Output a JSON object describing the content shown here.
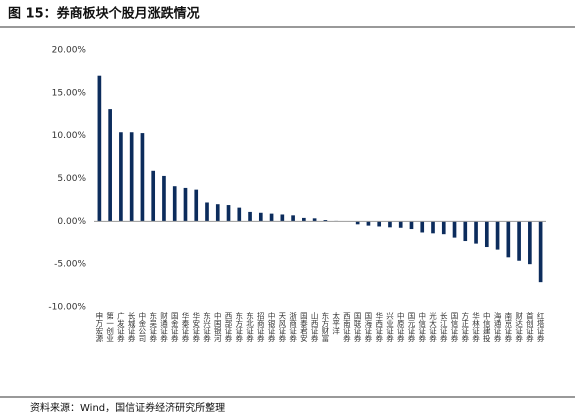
{
  "chart_data": {
    "type": "bar",
    "title": "图 15：券商板块个股月涨跌情况",
    "source": "资料来源：Wind，国信证券经济研究所整理",
    "categories": [
      "申万宏源",
      "第一创业",
      "广发证券",
      "长城证券",
      "中金公司",
      "东吴证券",
      "财通证券",
      "国金证券",
      "华泰证券",
      "华安证券",
      "东兴证券",
      "中国银河",
      "西部证券",
      "东方证券",
      "东北证券",
      "招商证券",
      "中银证券",
      "天风证券",
      "浙商证券",
      "国泰君安",
      "山西证券",
      "东方财富",
      "太平洋",
      "西南证券",
      "国联证券",
      "国海证券",
      "华西证券",
      "兴业证券",
      "中原证券",
      "国元证券",
      "中信证券",
      "光大证券",
      "长江证券",
      "国信证券",
      "方正证券",
      "华林证券",
      "中信建投",
      "海通证券",
      "南京证券",
      "财达证券",
      "首创证券",
      "红塔证券"
    ],
    "values": [
      17.0,
      13.1,
      10.4,
      10.4,
      10.3,
      5.9,
      5.3,
      4.1,
      3.9,
      3.7,
      2.2,
      2.0,
      1.9,
      1.6,
      1.1,
      1.0,
      0.9,
      0.8,
      0.7,
      0.4,
      0.35,
      0.15,
      0.05,
      0.0,
      -0.35,
      -0.5,
      -0.6,
      -0.7,
      -0.75,
      -0.9,
      -1.3,
      -1.4,
      -1.5,
      -1.9,
      -2.3,
      -2.6,
      -3.0,
      -3.3,
      -4.2,
      -4.6,
      -5.0,
      -7.1
    ],
    "color": "#0c2c5c",
    "ylim": [
      -10,
      20
    ],
    "yticks": [
      {
        "value": -10,
        "label": "-10.00%"
      },
      {
        "value": -5,
        "label": "-5.00%"
      },
      {
        "value": 0,
        "label": "0.00%"
      },
      {
        "value": 5,
        "label": "5.00%"
      },
      {
        "value": 10,
        "label": "10.00%"
      },
      {
        "value": 15,
        "label": "15.00%"
      },
      {
        "value": 20,
        "label": "20.00%"
      }
    ],
    "grid": false
  }
}
